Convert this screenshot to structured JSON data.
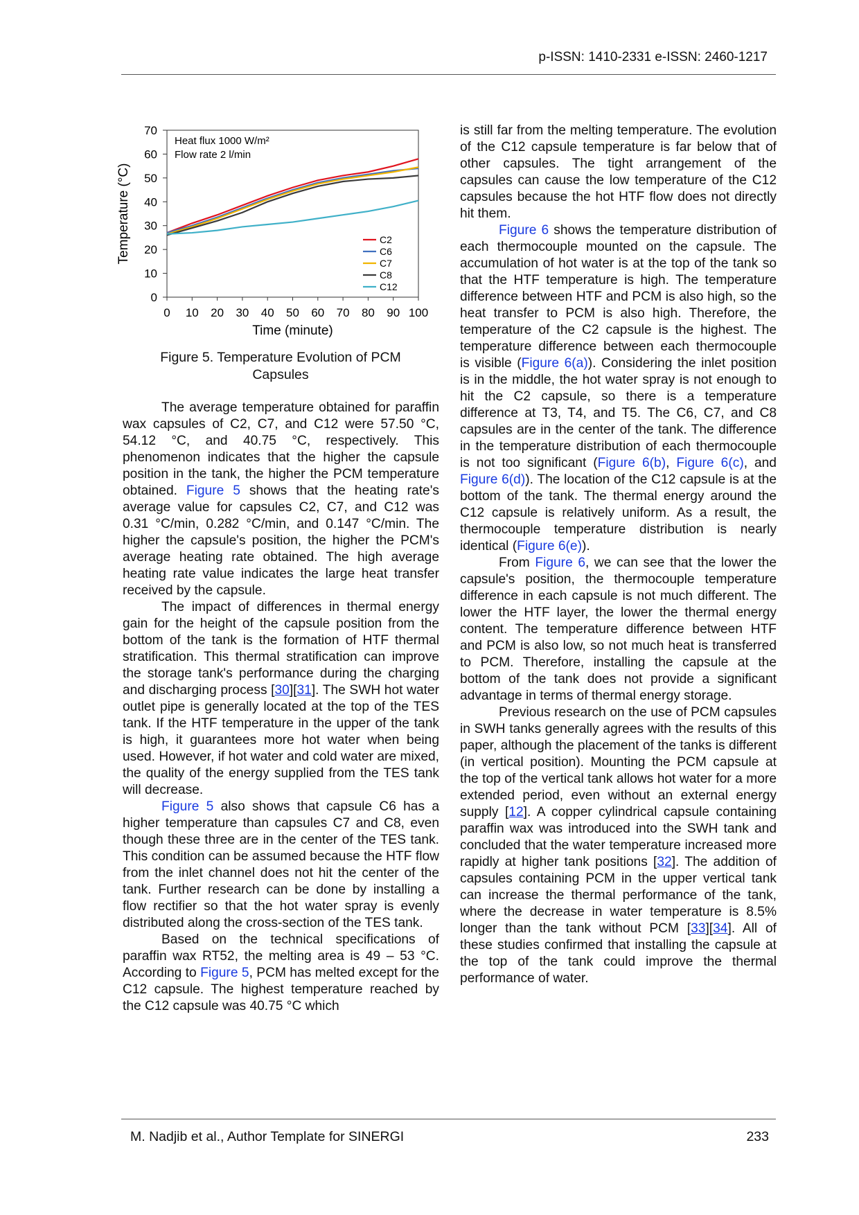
{
  "header": {
    "issn": "p-ISSN: 1410-2331  e-ISSN: 2460-1217"
  },
  "chart_data": {
    "type": "line",
    "xlabel": "Time (minute)",
    "ylabel": "Temperature (°C)",
    "annotations": [
      "Heat flux 1000 W/m²",
      "Flow rate 2 l/min"
    ],
    "x": [
      0,
      10,
      20,
      30,
      40,
      50,
      60,
      70,
      80,
      90,
      100
    ],
    "series": [
      {
        "name": "C2",
        "color": "#e0141e",
        "values": [
          27,
          31,
          34.5,
          38.5,
          42.5,
          46,
          49,
          51,
          52.5,
          55,
          58
        ]
      },
      {
        "name": "C6",
        "color": "#3f6fbf",
        "values": [
          27,
          30,
          33.5,
          37.5,
          41.5,
          45,
          48,
          50,
          51.5,
          53,
          54
        ]
      },
      {
        "name": "C7",
        "color": "#f0b400",
        "values": [
          26.5,
          29.5,
          33,
          37,
          41,
          44.5,
          47.5,
          49.5,
          51,
          52.5,
          54.5
        ]
      },
      {
        "name": "C8",
        "color": "#3a3a3a",
        "values": [
          26,
          29,
          32,
          35.5,
          40,
          43.5,
          46.5,
          48.5,
          49.5,
          50,
          51
        ]
      },
      {
        "name": "C12",
        "color": "#3fb0c8",
        "values": [
          26.5,
          27,
          28,
          29.5,
          30.5,
          31.5,
          33,
          34.5,
          36,
          38,
          40.5
        ]
      }
    ],
    "xlim": [
      0,
      100
    ],
    "xticks": [
      0,
      10,
      20,
      30,
      40,
      50,
      60,
      70,
      80,
      90,
      100
    ],
    "ylim": [
      0,
      70
    ],
    "yticks": [
      0,
      10,
      20,
      30,
      40,
      50,
      60,
      70
    ],
    "legend": "lower right",
    "grid": false
  },
  "figure_caption": "Figure 5. Temperature Evolution of PCM Capsules",
  "column1": [
    [
      "The average temperature obtained for paraffin wax capsules of C2, C7, and C12 were 57.50 °C, 54.12 °C, and 40.75 °C, respectively. This phenomenon indicates that the higher the capsule position in the tank, the higher the PCM temperature obtained. ",
      {
        "link": "Figure 5"
      },
      " shows that the heating rate's average value for capsules C2, C7, and C12 was 0.31 °C/min, 0.282 °C/min, and 0.147 °C/min. The higher the capsule's position, the higher the PCM's average heating rate obtained. The high average heating rate value indicates the large heat transfer received by the capsule."
    ],
    [
      "The impact of differences in thermal energy gain for the height of the capsule position from the bottom of the tank is the formation of HTF thermal stratification. This thermal stratification can improve the storage tank's performance during the charging and discharging process [",
      {
        "cite": "30"
      },
      "][",
      {
        "cite": "31"
      },
      "]. The SWH hot water outlet pipe is generally located at the top of the TES tank. If the HTF temperature in the upper of the tank is high, it guarantees more hot water when being used. However, if hot water and cold water are mixed, the quality of the energy supplied from the TES tank will decrease."
    ],
    [
      {
        "link": "Figure 5"
      },
      " also shows that capsule C6 has a higher temperature than capsules C7 and C8, even though these three are in the center of the TES tank. This condition can be assumed because the HTF flow from the inlet channel does not hit the center of the tank. Further research can be done by installing a flow rectifier so that the hot water spray is evenly distributed along the cross-section of the TES tank."
    ],
    [
      "Based on the technical specifications of paraffin wax RT52, the melting area is 49 – 53 °C. According to ",
      {
        "link": "Figure 5"
      },
      ", PCM has melted except for the C12 capsule. The highest temperature reached by the C12 capsule was 40.75 °C which"
    ]
  ],
  "column2": [
    [
      "is still far from the melting temperature. The evolution of the C12 capsule temperature is far below that of other capsules. The tight arrangement of the capsules can cause the low temperature of the C12 capsules because the hot HTF flow does not directly hit them."
    ],
    [
      {
        "link": "Figure 6"
      },
      " shows the temperature distribution of each thermocouple mounted on the capsule. The accumulation of hot water is at the top of the tank so that the HTF temperature is high. The temperature difference between HTF and PCM is also high, so the heat transfer to PCM is also high. Therefore, the temperature of the C2 capsule is the highest. The temperature difference between each thermocouple is visible (",
      {
        "link": "Figure 6(a)"
      },
      "). Considering the inlet position is in the middle, the hot water spray is not enough to hit the C2 capsule, so there is a temperature difference at T3, T4, and T5. The C6, C7, and C8 capsules are in the center of the tank. The difference in the temperature distribution of each thermocouple is not too significant (",
      {
        "link": "Figure 6(b)"
      },
      ", ",
      {
        "link": "Figure 6(c)"
      },
      ", and ",
      {
        "link": "Figure 6(d)"
      },
      "). The location of the C12 capsule is at the bottom of the tank. The thermal energy around the C12 capsule is relatively uniform. As a result, the thermocouple temperature distribution is nearly identical (",
      {
        "link": "Figure 6(e)"
      },
      ")."
    ],
    [
      "From ",
      {
        "link": "Figure 6"
      },
      ", we can see that the lower the capsule's position, the thermocouple temperature difference in each capsule is not much different. The lower the HTF layer, the lower the thermal energy content. The temperature difference between HTF and PCM is also low, so not much heat is transferred to PCM. Therefore, installing the capsule at the bottom of the tank does not provide a significant advantage in terms of thermal energy storage."
    ],
    [
      "Previous research on the use of PCM capsules in SWH tanks generally agrees with the results of this paper, although the placement of the tanks is different (in vertical position). Mounting the PCM capsule at the top of the vertical tank allows hot water for a more extended period, even without an external energy supply [",
      {
        "cite": "12"
      },
      "]. A copper cylindrical capsule containing paraffin wax was introduced into the SWH tank and concluded that the water temperature increased more rapidly at higher tank positions [",
      {
        "cite": "32"
      },
      "]. The addition of capsules containing PCM in the upper vertical tank can increase the thermal performance of the tank, where the decrease in water temperature is 8.5% longer than the tank without PCM [",
      {
        "cite": "33"
      },
      "][",
      {
        "cite": "34"
      },
      "]. All of these studies confirmed that installing the capsule at the top of the tank could improve the thermal performance of water."
    ]
  ],
  "footer": {
    "authors": "M. Nadjib et al., Author Template for SINERGI",
    "page": "233"
  }
}
